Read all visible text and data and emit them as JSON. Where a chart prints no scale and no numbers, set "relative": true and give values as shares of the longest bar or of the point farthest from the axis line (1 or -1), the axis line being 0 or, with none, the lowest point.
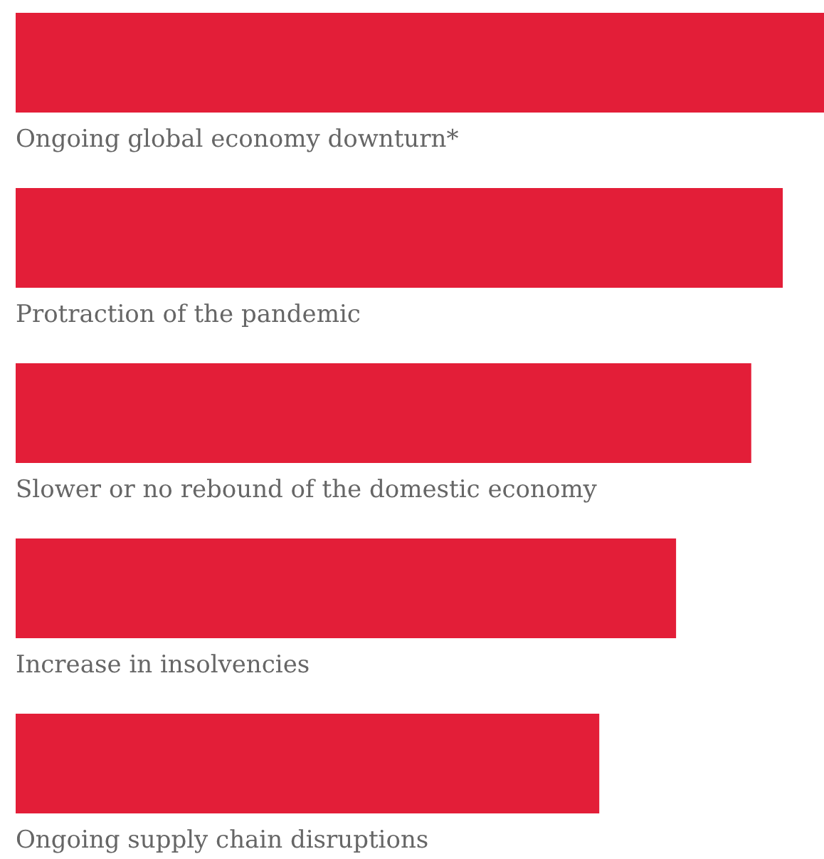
{
  "chart_data": {
    "type": "bar",
    "orientation": "horizontal",
    "relative": true,
    "color": "#e31e38",
    "categories": [
      "Ongoing global economy downturn*",
      "Protraction of the pandemic",
      "Slower or no rebound of the domestic economy",
      "Increase in insolvencies",
      "Ongoing supply chain disruptions"
    ],
    "values": [
      1,
      0.949,
      0.91,
      0.817,
      0.722
    ]
  }
}
